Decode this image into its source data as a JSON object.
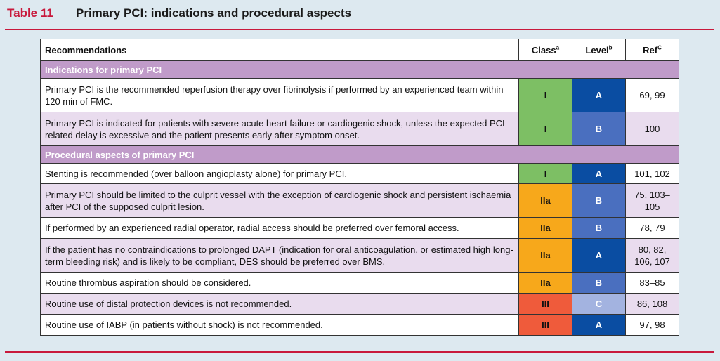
{
  "header": {
    "table_number": "Table 11",
    "title": "Primary PCI: indications and procedural aspects"
  },
  "columns": {
    "recommendations": "Recommendations",
    "class": "Class",
    "class_sup": "a",
    "level": "Level",
    "level_sup": "b",
    "ref": "Ref",
    "ref_sup": "C"
  },
  "colors": {
    "class_I": "#7dbf64",
    "class_IIa": "#f7a81b",
    "class_III": "#ef5b3b",
    "level_A": "#0a4da2",
    "level_B": "#4a6fbf",
    "level_C": "#a3b3e0",
    "section": "#c09bc9",
    "rule": "#c8193c"
  },
  "rows": [
    {
      "type": "section",
      "text": "Indications for primary PCI"
    },
    {
      "type": "rec",
      "shade": "white",
      "text": "Primary PCI is the recommended reperfusion therapy over fibrinolysis if performed by an experienced team within 120 min of FMC.",
      "class": "I",
      "level": "A",
      "ref": "69, 99"
    },
    {
      "type": "rec",
      "shade": "lilac",
      "text": "Primary PCI is indicated for patients with severe acute heart failure or cardiogenic shock, unless the expected PCI related delay is excessive and the patient presents early after symptom onset.",
      "class": "I",
      "level": "B",
      "ref": "100"
    },
    {
      "type": "section",
      "text": "Procedural aspects of primary PCI"
    },
    {
      "type": "rec",
      "shade": "white",
      "text": "Stenting is recommended (over balloon angioplasty alone) for primary PCI.",
      "class": "I",
      "level": "A",
      "ref": "101, 102"
    },
    {
      "type": "rec",
      "shade": "lilac",
      "text": "Primary PCI should be limited to the culprit vessel with the exception of cardiogenic shock and persistent ischaemia after PCI of the supposed culprit lesion.",
      "class": "IIa",
      "level": "B",
      "ref": "75, 103–105"
    },
    {
      "type": "rec",
      "shade": "white",
      "text": "If performed by an experienced radial operator, radial access should be preferred over femoral access.",
      "class": "IIa",
      "level": "B",
      "ref": "78, 79"
    },
    {
      "type": "rec",
      "shade": "lilac",
      "text": "If the patient has no contraindications to prolonged DAPT (indication for oral anticoagulation, or estimated high long-term bleeding risk) and is likely to be compliant, DES should be preferred over BMS.",
      "class": "IIa",
      "level": "A",
      "ref": "80, 82, 106, 107"
    },
    {
      "type": "rec",
      "shade": "white",
      "text": "Routine thrombus aspiration should be considered.",
      "class": "IIa",
      "level": "B",
      "ref": "83–85"
    },
    {
      "type": "rec",
      "shade": "lilac",
      "text": "Routine use of distal protection devices is not recommended.",
      "class": "III",
      "level": "C",
      "ref": "86, 108"
    },
    {
      "type": "rec",
      "shade": "white",
      "text": "Routine use of IABP (in patients without shock) is not recommended.",
      "class": "III",
      "level": "A",
      "ref": "97, 98"
    }
  ]
}
